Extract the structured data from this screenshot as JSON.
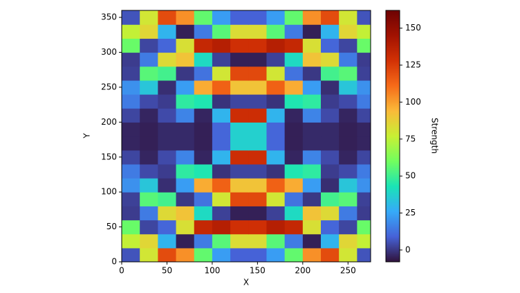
{
  "chart_data": {
    "type": "heatmap",
    "xlabel": "X",
    "ylabel": "Y",
    "colorbar_label": "Strength",
    "colormap": "turbo",
    "x": [
      10,
      30,
      50,
      70,
      90,
      110,
      130,
      150,
      170,
      190,
      210,
      230,
      250,
      270
    ],
    "y": [
      10,
      30,
      50,
      70,
      90,
      110,
      130,
      150,
      170,
      190,
      210,
      230,
      250,
      270,
      290,
      310,
      330,
      350
    ],
    "z": [
      [
        6,
        80,
        120,
        103,
        57,
        23,
        9,
        9,
        23,
        57,
        103,
        120,
        80,
        6
      ],
      [
        76,
        85,
        29,
        -5,
        15,
        55,
        83,
        83,
        55,
        15,
        -5,
        29,
        85,
        76
      ],
      [
        58,
        3,
        10,
        82,
        133,
        138,
        129,
        129,
        138,
        133,
        82,
        10,
        3,
        58
      ],
      [
        1,
        15,
        84,
        91,
        40,
        2,
        -5,
        -5,
        2,
        40,
        91,
        84,
        15,
        1
      ],
      [
        2,
        55,
        51,
        0,
        13,
        80,
        121,
        121,
        80,
        13,
        0,
        51,
        55,
        2
      ],
      [
        20,
        34,
        -2,
        23,
        97,
        114,
        91,
        91,
        114,
        97,
        23,
        -2,
        34,
        20
      ],
      [
        15,
        4,
        1,
        47,
        44,
        -1,
        3,
        3,
        -1,
        44,
        47,
        1,
        4,
        15
      ],
      [
        3,
        -4,
        4,
        17,
        -4,
        29,
        130,
        130,
        29,
        -4,
        17,
        4,
        -4,
        3
      ],
      [
        -4,
        -5,
        -3,
        -3,
        -5,
        10,
        37,
        37,
        10,
        -5,
        -3,
        -3,
        -5,
        -4
      ],
      [
        -4,
        -5,
        -3,
        -3,
        -5,
        10,
        37,
        37,
        10,
        -5,
        -3,
        -3,
        -5,
        -4
      ],
      [
        3,
        -4,
        4,
        17,
        -4,
        29,
        130,
        130,
        29,
        -4,
        17,
        4,
        -4,
        3
      ],
      [
        15,
        4,
        1,
        47,
        44,
        -1,
        3,
        3,
        -1,
        44,
        47,
        1,
        4,
        15
      ],
      [
        20,
        34,
        -2,
        23,
        97,
        114,
        91,
        91,
        114,
        97,
        23,
        -2,
        34,
        20
      ],
      [
        2,
        55,
        51,
        0,
        13,
        80,
        121,
        121,
        80,
        13,
        0,
        51,
        55,
        2
      ],
      [
        1,
        15,
        84,
        91,
        40,
        2,
        -5,
        -5,
        2,
        40,
        91,
        84,
        15,
        1
      ],
      [
        58,
        3,
        10,
        82,
        133,
        138,
        129,
        129,
        138,
        133,
        82,
        10,
        3,
        58
      ],
      [
        76,
        85,
        29,
        -5,
        15,
        55,
        83,
        83,
        55,
        15,
        -5,
        29,
        85,
        76
      ],
      [
        6,
        80,
        120,
        103,
        57,
        23,
        9,
        9,
        23,
        57,
        103,
        120,
        80,
        6
      ]
    ],
    "xlim": [
      0,
      275
    ],
    "ylim": [
      0,
      360
    ],
    "xticks": [
      0,
      50,
      100,
      150,
      200,
      250
    ],
    "yticks": [
      0,
      50,
      100,
      150,
      200,
      250,
      300,
      350
    ],
    "clim": [
      -8,
      162
    ],
    "cticks": [
      0,
      25,
      50,
      75,
      100,
      125,
      150
    ]
  }
}
